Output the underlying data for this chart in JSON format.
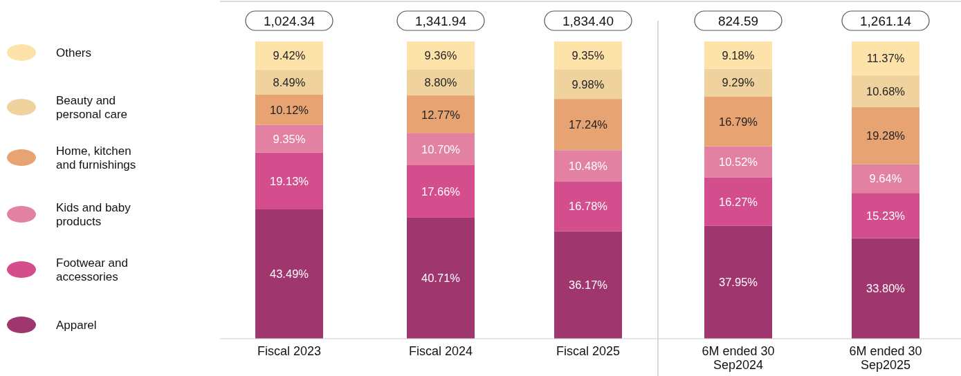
{
  "chart_data": {
    "type": "bar",
    "stacked": true,
    "legend": "left",
    "ylim": [
      0,
      100
    ],
    "categories": [
      "Fiscal 2023",
      "Fiscal 2024",
      "Fiscal 2025",
      "6M ended 30 Sep2024",
      "6M ended 30 Sep2025"
    ],
    "series": [
      {
        "name": "Apparel",
        "color": "#a0366e",
        "values": [
          43.49,
          40.71,
          36.17,
          37.95,
          33.8
        ],
        "value_labels": [
          "43.49%",
          "40.71%",
          "36.17%",
          "37.95%",
          "33.80%"
        ]
      },
      {
        "name": "Footwear and accessories",
        "color": "#d44d8c",
        "values": [
          19.13,
          17.66,
          16.78,
          16.27,
          15.23
        ],
        "value_labels": [
          "19.13%",
          "17.66%",
          "16.78%",
          "16.27%",
          "15.23%"
        ]
      },
      {
        "name": "Kids and baby products",
        "color": "#e281a2",
        "values": [
          9.35,
          10.7,
          10.48,
          10.52,
          9.64
        ],
        "value_labels": [
          "9.35%",
          "10.70%",
          "10.48%",
          "10.52%",
          "9.64%"
        ]
      },
      {
        "name": "Home, kitchen and furnishings",
        "color": "#e8a372",
        "values": [
          10.12,
          12.77,
          17.24,
          16.79,
          19.28
        ],
        "value_labels": [
          "10.12%",
          "12.77%",
          "17.24%",
          "16.79%",
          "19.28%"
        ]
      },
      {
        "name": "Beauty and personal care",
        "color": "#f0d29f",
        "values": [
          8.49,
          8.8,
          9.98,
          9.29,
          10.68
        ],
        "value_labels": [
          "8.49%",
          "8.80%",
          "9.98%",
          "9.29%",
          "10.68%"
        ]
      },
      {
        "name": "Others",
        "color": "#fde3aa",
        "values": [
          9.42,
          9.36,
          9.35,
          9.18,
          11.37
        ],
        "value_labels": [
          "9.42%",
          "9.36%",
          "9.35%",
          "9.18%",
          "11.37%"
        ]
      }
    ],
    "annotations": [
      "1,024.34",
      "1,341.94",
      "1,834.40",
      "824.59",
      "1,261.14"
    ]
  }
}
